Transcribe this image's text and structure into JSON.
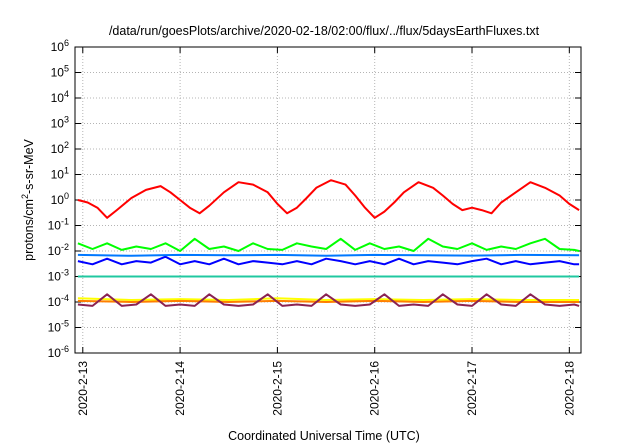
{
  "chart_data": {
    "type": "line",
    "title": "/data/run/goesPlots/archive/2020-02-18/02:00/flux/../flux/5daysEarthFluxes.txt",
    "xlabel": "Coordinated Universal Time (UTC)",
    "ylabel_base": "protons/cm",
    "ylabel_sup": "2",
    "ylabel_rest": "-s-sr-MeV",
    "yscale": "log",
    "ylim_exp": [
      -6,
      6
    ],
    "ytick_exps": [
      "-6",
      "-5",
      "-4",
      "-3",
      "-2",
      "-1",
      "0",
      "1",
      "2",
      "3",
      "4",
      "5",
      "6"
    ],
    "ytick_base": "10",
    "xlim_days": [
      -0.08,
      5.12
    ],
    "xticks": [
      {
        "label": "2020-2-13",
        "day": 0
      },
      {
        "label": "2020-2-14",
        "day": 1
      },
      {
        "label": "2020-2-15",
        "day": 2
      },
      {
        "label": "2020-2-16",
        "day": 3
      },
      {
        "label": "2020-2-17",
        "day": 4
      },
      {
        "label": "2020-2-18",
        "day": 5
      }
    ],
    "grid": true,
    "series": [
      {
        "color": "#ff0000",
        "x": [
          -0.05,
          0.05,
          0.15,
          0.25,
          0.35,
          0.5,
          0.65,
          0.8,
          0.9,
          1.0,
          1.1,
          1.2,
          1.3,
          1.45,
          1.6,
          1.75,
          1.9,
          2.0,
          2.1,
          2.2,
          2.3,
          2.4,
          2.55,
          2.7,
          2.8,
          2.9,
          3.0,
          3.1,
          3.2,
          3.3,
          3.45,
          3.6,
          3.7,
          3.8,
          3.9,
          4.0,
          4.1,
          4.2,
          4.3,
          4.45,
          4.6,
          4.75,
          4.9,
          5.0,
          5.1
        ],
        "y": [
          1.0,
          0.8,
          0.5,
          0.2,
          0.4,
          1.2,
          2.5,
          3.5,
          2.0,
          1.0,
          0.5,
          0.3,
          0.6,
          2.0,
          5.0,
          4.0,
          2.0,
          0.7,
          0.3,
          0.5,
          1.2,
          3.0,
          6.0,
          4.0,
          1.5,
          0.5,
          0.2,
          0.35,
          0.8,
          2.0,
          5.0,
          3.0,
          1.5,
          0.7,
          0.4,
          0.5,
          0.4,
          0.3,
          0.8,
          2.0,
          5.0,
          3.0,
          1.5,
          0.7,
          0.4
        ]
      },
      {
        "color": "#00ff00",
        "x": [
          -0.05,
          0.1,
          0.25,
          0.4,
          0.55,
          0.7,
          0.85,
          1.0,
          1.15,
          1.3,
          1.45,
          1.6,
          1.75,
          1.9,
          2.05,
          2.2,
          2.35,
          2.5,
          2.65,
          2.8,
          2.95,
          3.1,
          3.25,
          3.4,
          3.55,
          3.7,
          3.85,
          4.0,
          4.15,
          4.3,
          4.45,
          4.6,
          4.75,
          4.9,
          5.05,
          5.1
        ],
        "y": [
          0.02,
          0.012,
          0.02,
          0.011,
          0.015,
          0.012,
          0.02,
          0.01,
          0.03,
          0.012,
          0.015,
          0.01,
          0.02,
          0.012,
          0.011,
          0.02,
          0.015,
          0.012,
          0.03,
          0.011,
          0.02,
          0.012,
          0.015,
          0.01,
          0.03,
          0.015,
          0.012,
          0.02,
          0.011,
          0.015,
          0.012,
          0.02,
          0.03,
          0.012,
          0.011,
          0.01
        ]
      },
      {
        "color": "#0000ff",
        "x": [
          -0.05,
          0.1,
          0.25,
          0.4,
          0.55,
          0.7,
          0.85,
          1.0,
          1.15,
          1.3,
          1.45,
          1.6,
          1.75,
          1.9,
          2.05,
          2.2,
          2.35,
          2.5,
          2.65,
          2.8,
          2.95,
          3.1,
          3.25,
          3.4,
          3.55,
          3.7,
          3.85,
          4.0,
          4.15,
          4.3,
          4.45,
          4.6,
          4.75,
          4.9,
          5.05,
          5.1
        ],
        "y": [
          0.004,
          0.003,
          0.005,
          0.003,
          0.004,
          0.0035,
          0.006,
          0.003,
          0.004,
          0.003,
          0.005,
          0.003,
          0.004,
          0.0035,
          0.003,
          0.004,
          0.003,
          0.005,
          0.004,
          0.003,
          0.004,
          0.003,
          0.005,
          0.003,
          0.004,
          0.0035,
          0.003,
          0.004,
          0.005,
          0.003,
          0.004,
          0.003,
          0.0035,
          0.004,
          0.003,
          0.003
        ]
      },
      {
        "color": "#0078ff",
        "x": [
          -0.05,
          0.5,
          1.0,
          1.5,
          2.0,
          2.5,
          3.0,
          3.5,
          4.0,
          4.5,
          5.1
        ],
        "y": [
          0.007,
          0.0065,
          0.007,
          0.0068,
          0.007,
          0.0065,
          0.007,
          0.0068,
          0.0066,
          0.007,
          0.0068
        ]
      },
      {
        "color": "#20c8a0",
        "x": [
          -0.05,
          0.5,
          1.0,
          1.5,
          2.0,
          2.5,
          3.0,
          3.5,
          4.0,
          4.5,
          5.1
        ],
        "y": [
          0.001,
          0.001,
          0.001,
          0.001,
          0.001,
          0.001,
          0.001,
          0.001,
          0.001,
          0.001,
          0.001
        ]
      },
      {
        "color": "#ffff00",
        "x": [
          -0.05,
          0.5,
          1.0,
          1.5,
          2.0,
          2.5,
          3.0,
          3.5,
          4.0,
          4.5,
          5.1
        ],
        "y": [
          0.00014,
          0.00012,
          0.00013,
          0.00012,
          0.00014,
          0.00012,
          0.00013,
          0.00012,
          0.00013,
          0.00012,
          0.00012
        ]
      },
      {
        "color": "#ff7f00",
        "x": [
          -0.05,
          0.5,
          1.0,
          1.5,
          2.0,
          2.5,
          3.0,
          3.5,
          4.0,
          4.5,
          5.1
        ],
        "y": [
          0.00011,
          0.0001,
          0.00011,
          0.0001,
          0.00011,
          0.0001,
          0.00011,
          0.0001,
          0.00011,
          0.0001,
          0.0001
        ]
      },
      {
        "color": "#8b2252",
        "x": [
          -0.05,
          0.1,
          0.25,
          0.4,
          0.55,
          0.7,
          0.85,
          1.0,
          1.15,
          1.3,
          1.45,
          1.6,
          1.75,
          1.9,
          2.05,
          2.2,
          2.35,
          2.5,
          2.65,
          2.8,
          2.95,
          3.1,
          3.25,
          3.4,
          3.55,
          3.7,
          3.85,
          4.0,
          4.15,
          4.3,
          4.45,
          4.6,
          4.75,
          4.9,
          5.05,
          5.1
        ],
        "y": [
          8e-05,
          7e-05,
          0.0002,
          7e-05,
          8e-05,
          0.0002,
          7e-05,
          8e-05,
          7e-05,
          0.0002,
          8e-05,
          7e-05,
          8e-05,
          0.0002,
          7e-05,
          8e-05,
          7e-05,
          0.0002,
          8e-05,
          7e-05,
          8e-05,
          0.0002,
          7e-05,
          8e-05,
          7e-05,
          0.0002,
          8e-05,
          7e-05,
          0.0002,
          8e-05,
          7e-05,
          0.0002,
          8e-05,
          7e-05,
          8e-05,
          7e-05
        ]
      }
    ]
  }
}
